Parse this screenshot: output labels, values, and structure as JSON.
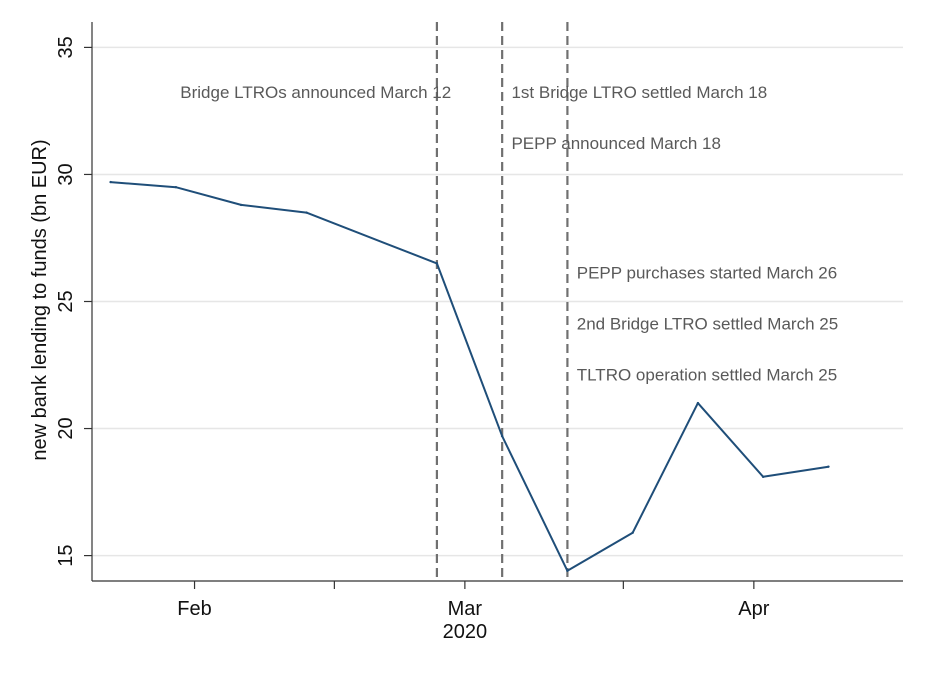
{
  "chart_data": {
    "type": "line",
    "title": "",
    "xlabel": "",
    "ylabel": "new bank lending to funds (bn EUR)",
    "ylim": [
      14,
      36
    ],
    "xlim": [
      "2020-01-21",
      "2020-04-17"
    ],
    "x_ticks": [
      {
        "date": "2020-02-01",
        "label": "Feb"
      },
      {
        "date": "2020-03-01",
        "label": "Mar"
      },
      {
        "date": "2020-04-01",
        "label": "Apr"
      }
    ],
    "x_minor_ticks": [
      "2020-02-16",
      "2020-03-18"
    ],
    "x_sublabel": {
      "date": "2020-03-01",
      "label": "2020"
    },
    "y_ticks": [
      15,
      20,
      25,
      30,
      35
    ],
    "grid": true,
    "series": [
      {
        "color": "#1f4e79",
        "points": [
          {
            "x": "2020-01-23",
            "y": 29.7
          },
          {
            "x": "2020-01-30",
            "y": 29.5
          },
          {
            "x": "2020-02-06",
            "y": 28.8
          },
          {
            "x": "2020-02-13",
            "y": 28.5
          },
          {
            "x": "2020-02-27",
            "y": 26.5
          },
          {
            "x": "2020-03-05",
            "y": 19.7
          },
          {
            "x": "2020-03-12",
            "y": 14.4
          },
          {
            "x": "2020-03-19",
            "y": 15.9
          },
          {
            "x": "2020-03-26",
            "y": 21.0
          },
          {
            "x": "2020-04-02",
            "y": 18.1
          },
          {
            "x": "2020-04-09",
            "y": 18.5
          }
        ]
      }
    ],
    "vlines": [
      "2020-02-27",
      "2020-03-05",
      "2020-03-12"
    ],
    "annotations": [
      {
        "text": "Bridge LTROs announced March 12",
        "date": "2020-02-14",
        "y": 33.0,
        "anchor": "middle"
      },
      {
        "text": "1st Bridge LTRO settled March 18",
        "date": "2020-03-06",
        "y": 33.0,
        "anchor": "start"
      },
      {
        "text": "PEPP announced March 18",
        "date": "2020-03-06",
        "y": 31.0,
        "anchor": "start"
      },
      {
        "text": "PEPP purchases started March 26",
        "date": "2020-03-13",
        "y": 25.9,
        "anchor": "start"
      },
      {
        "text": "2nd Bridge LTRO settled March 25",
        "date": "2020-03-13",
        "y": 23.9,
        "anchor": "start"
      },
      {
        "text": "TLTRO operation settled March 25",
        "date": "2020-03-13",
        "y": 21.9,
        "anchor": "start"
      }
    ]
  }
}
